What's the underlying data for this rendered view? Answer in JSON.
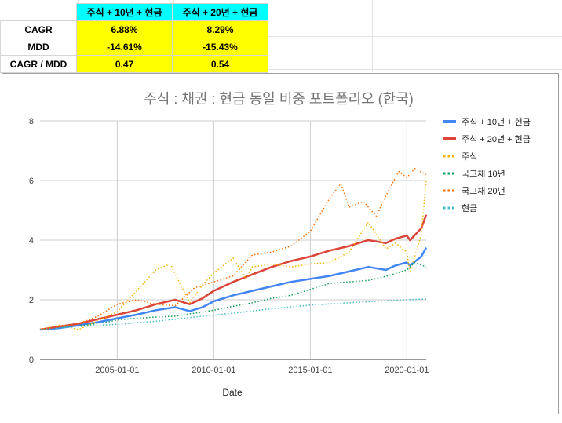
{
  "metrics_table": {
    "columns": [
      "주식 + 10년 + 현금",
      "주식 + 20년 + 현금"
    ],
    "rows": [
      {
        "label": "CAGR",
        "values": [
          "6.88%",
          "8.29%"
        ]
      },
      {
        "label": "MDD",
        "values": [
          "-14.61%",
          "-15.43%"
        ]
      },
      {
        "label": "CAGR / MDD",
        "values": [
          "0.47",
          "0.54"
        ]
      }
    ]
  },
  "chart_data": {
    "type": "line",
    "title": "주식 : 채권 : 현금 동일 비중 포트폴리오 (한국)",
    "xlabel": "Date",
    "ylabel": "",
    "ylim": [
      0,
      8
    ],
    "yticks": [
      0,
      2,
      4,
      6,
      8
    ],
    "xticks": [
      "2005-01-01",
      "2010-01-01",
      "2015-01-01",
      "2020-01-01"
    ],
    "xlim": [
      "2001-01-01",
      "2021-01-01"
    ],
    "grid": true,
    "legend_position": "right",
    "series": [
      {
        "name": "주식 + 10년 + 현금",
        "color": "#4285f4",
        "style": "solid",
        "points": [
          [
            "2001-01-01",
            1.0
          ],
          [
            "2002-01-01",
            1.05
          ],
          [
            "2003-01-01",
            1.15
          ],
          [
            "2004-01-01",
            1.25
          ],
          [
            "2005-01-01",
            1.38
          ],
          [
            "2006-01-01",
            1.5
          ],
          [
            "2007-01-01",
            1.65
          ],
          [
            "2008-01-01",
            1.75
          ],
          [
            "2008-10-01",
            1.62
          ],
          [
            "2009-06-01",
            1.75
          ],
          [
            "2010-01-01",
            1.95
          ],
          [
            "2011-01-01",
            2.15
          ],
          [
            "2012-01-01",
            2.3
          ],
          [
            "2013-01-01",
            2.45
          ],
          [
            "2014-01-01",
            2.6
          ],
          [
            "2015-01-01",
            2.7
          ],
          [
            "2016-01-01",
            2.8
          ],
          [
            "2017-01-01",
            2.95
          ],
          [
            "2018-01-01",
            3.1
          ],
          [
            "2018-12-01",
            3.0
          ],
          [
            "2019-06-01",
            3.15
          ],
          [
            "2020-01-01",
            3.25
          ],
          [
            "2020-03-01",
            3.15
          ],
          [
            "2020-10-01",
            3.45
          ],
          [
            "2021-01-01",
            3.75
          ]
        ]
      },
      {
        "name": "주식 + 20년 + 현금",
        "color": "#db4437",
        "style": "solid",
        "points": [
          [
            "2001-01-01",
            1.0
          ],
          [
            "2002-01-01",
            1.1
          ],
          [
            "2003-01-01",
            1.2
          ],
          [
            "2004-01-01",
            1.35
          ],
          [
            "2005-01-01",
            1.5
          ],
          [
            "2006-01-01",
            1.65
          ],
          [
            "2007-01-01",
            1.85
          ],
          [
            "2008-01-01",
            2.0
          ],
          [
            "2008-10-01",
            1.85
          ],
          [
            "2009-06-01",
            2.05
          ],
          [
            "2010-01-01",
            2.3
          ],
          [
            "2011-01-01",
            2.6
          ],
          [
            "2012-01-01",
            2.85
          ],
          [
            "2013-01-01",
            3.1
          ],
          [
            "2014-01-01",
            3.3
          ],
          [
            "2015-01-01",
            3.45
          ],
          [
            "2016-01-01",
            3.65
          ],
          [
            "2017-01-01",
            3.8
          ],
          [
            "2018-01-01",
            4.0
          ],
          [
            "2018-12-01",
            3.9
          ],
          [
            "2019-06-01",
            4.05
          ],
          [
            "2020-01-01",
            4.15
          ],
          [
            "2020-03-01",
            4.0
          ],
          [
            "2020-10-01",
            4.4
          ],
          [
            "2021-01-01",
            4.85
          ]
        ]
      },
      {
        "name": "주식",
        "color": "#f4b400",
        "style": "dotted",
        "points": [
          [
            "2001-01-01",
            1.0
          ],
          [
            "2002-01-01",
            1.15
          ],
          [
            "2003-01-01",
            1.0
          ],
          [
            "2004-01-01",
            1.3
          ],
          [
            "2005-01-01",
            1.6
          ],
          [
            "2006-01-01",
            2.3
          ],
          [
            "2007-01-01",
            3.0
          ],
          [
            "2007-10-01",
            3.2
          ],
          [
            "2008-10-01",
            1.9
          ],
          [
            "2009-06-01",
            2.5
          ],
          [
            "2010-01-01",
            2.9
          ],
          [
            "2011-01-01",
            3.4
          ],
          [
            "2011-09-01",
            2.7
          ],
          [
            "2012-01-01",
            3.1
          ],
          [
            "2013-01-01",
            3.2
          ],
          [
            "2014-01-01",
            3.1
          ],
          [
            "2015-01-01",
            3.2
          ],
          [
            "2016-01-01",
            3.25
          ],
          [
            "2017-01-01",
            3.6
          ],
          [
            "2018-01-01",
            4.6
          ],
          [
            "2018-12-01",
            3.7
          ],
          [
            "2019-06-01",
            3.9
          ],
          [
            "2020-01-01",
            3.6
          ],
          [
            "2020-03-01",
            2.9
          ],
          [
            "2020-10-01",
            4.2
          ],
          [
            "2021-01-01",
            6.0
          ]
        ]
      },
      {
        "name": "국고채 10년",
        "color": "#0f9d58",
        "style": "dotted",
        "points": [
          [
            "2001-01-01",
            1.0
          ],
          [
            "2002-01-01",
            1.06
          ],
          [
            "2003-01-01",
            1.12
          ],
          [
            "2004-01-01",
            1.2
          ],
          [
            "2005-01-01",
            1.32
          ],
          [
            "2006-01-01",
            1.38
          ],
          [
            "2007-01-01",
            1.42
          ],
          [
            "2008-01-01",
            1.45
          ],
          [
            "2009-01-01",
            1.55
          ],
          [
            "2010-01-01",
            1.65
          ],
          [
            "2011-01-01",
            1.78
          ],
          [
            "2012-01-01",
            1.9
          ],
          [
            "2013-01-01",
            2.05
          ],
          [
            "2014-01-01",
            2.15
          ],
          [
            "2015-01-01",
            2.35
          ],
          [
            "2016-01-01",
            2.55
          ],
          [
            "2017-01-01",
            2.6
          ],
          [
            "2018-01-01",
            2.65
          ],
          [
            "2019-01-01",
            2.8
          ],
          [
            "2020-01-01",
            3.0
          ],
          [
            "2020-06-01",
            3.25
          ],
          [
            "2021-01-01",
            3.1
          ]
        ]
      },
      {
        "name": "국고채 20년",
        "color": "#ff6d00",
        "style": "dotted",
        "points": [
          [
            "2001-01-01",
            1.0
          ],
          [
            "2002-01-01",
            1.12
          ],
          [
            "2003-01-01",
            1.2
          ],
          [
            "2004-01-01",
            1.45
          ],
          [
            "2005-01-01",
            1.85
          ],
          [
            "2006-01-01",
            2.0
          ],
          [
            "2007-01-01",
            1.85
          ],
          [
            "2008-01-01",
            1.8
          ],
          [
            "2009-01-01",
            2.4
          ],
          [
            "2010-01-01",
            2.6
          ],
          [
            "2011-01-01",
            2.8
          ],
          [
            "2012-01-01",
            3.5
          ],
          [
            "2013-01-01",
            3.6
          ],
          [
            "2014-01-01",
            3.8
          ],
          [
            "2015-01-01",
            4.3
          ],
          [
            "2016-01-01",
            5.4
          ],
          [
            "2016-08-01",
            5.9
          ],
          [
            "2017-01-01",
            5.1
          ],
          [
            "2017-10-01",
            5.3
          ],
          [
            "2018-06-01",
            4.8
          ],
          [
            "2019-01-01",
            5.6
          ],
          [
            "2019-08-01",
            6.3
          ],
          [
            "2020-01-01",
            6.1
          ],
          [
            "2020-06-01",
            6.4
          ],
          [
            "2021-01-01",
            6.2
          ]
        ]
      },
      {
        "name": "현금",
        "color": "#46bdc6",
        "style": "dotted",
        "points": [
          [
            "2001-01-01",
            1.0
          ],
          [
            "2003-01-01",
            1.1
          ],
          [
            "2005-01-01",
            1.18
          ],
          [
            "2007-01-01",
            1.28
          ],
          [
            "2009-01-01",
            1.42
          ],
          [
            "2011-01-01",
            1.55
          ],
          [
            "2013-01-01",
            1.7
          ],
          [
            "2015-01-01",
            1.82
          ],
          [
            "2017-01-01",
            1.9
          ],
          [
            "2019-01-01",
            1.97
          ],
          [
            "2021-01-01",
            2.03
          ]
        ]
      }
    ]
  }
}
